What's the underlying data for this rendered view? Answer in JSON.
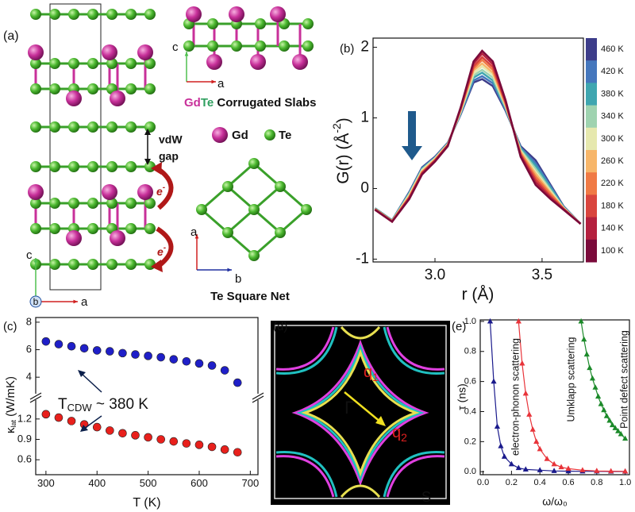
{
  "panel_a": {
    "panel": "(a)",
    "slab_label": [
      "Gd",
      "Te",
      " Corrugated Slabs"
    ],
    "legend": [
      "Gd",
      "Te"
    ],
    "gap": [
      "vdW",
      "gap"
    ],
    "electrons": [
      {
        "symbol": "e",
        "sup": "-"
      },
      {
        "symbol": "e",
        "sup": "-"
      }
    ],
    "slab_axes": [
      "c",
      "a"
    ],
    "net_axes": [
      "a",
      "b"
    ],
    "cell_axes": [
      "c",
      "b",
      "a"
    ],
    "net_label": "Te Square Net"
  },
  "panel_d": {
    "panel": "(d)",
    "gamma": "Γ",
    "q1": {
      "symbol": "q",
      "sub": "1"
    },
    "q2": {
      "symbol": "q",
      "sub": "2"
    },
    "corner": "S"
  },
  "chart_data": [
    {
      "type": "line",
      "panel": "(b)",
      "xlabel": "r (Å)",
      "ylabel": {
        "text": "G(r) (Å",
        "sup": "-2",
        "close": ")"
      },
      "x": [
        2.72,
        2.8,
        2.88,
        2.94,
        3.0,
        3.06,
        3.12,
        3.18,
        3.22,
        3.27,
        3.33,
        3.4,
        3.47,
        3.54,
        3.6,
        3.68
      ],
      "xlim": [
        2.711,
        3.693
      ],
      "xticks": [
        {
          "value": 3,
          "label": "3.0"
        },
        3.5
      ],
      "ylim": [
        -1.04,
        2.13
      ],
      "yticks": [
        -1,
        0,
        1,
        2
      ],
      "series": [
        {
          "name": "460 K",
          "color": "#3d3d8a",
          "values": [
            -0.28,
            -0.45,
            -0.05,
            0.3,
            0.45,
            0.65,
            1.05,
            1.5,
            1.55,
            1.45,
            1.1,
            0.6,
            0.4,
            0.05,
            -0.25,
            -0.5
          ]
        },
        {
          "name": "420 K",
          "color": "#4577bd",
          "values": [
            -0.28,
            -0.45,
            -0.06,
            0.29,
            0.44,
            0.64,
            1.06,
            1.53,
            1.59,
            1.49,
            1.12,
            0.58,
            0.36,
            0.03,
            -0.26,
            -0.5
          ]
        },
        {
          "name": "380 K",
          "color": "#3fa6b0",
          "values": [
            -0.28,
            -0.45,
            -0.07,
            0.28,
            0.43,
            0.64,
            1.07,
            1.57,
            1.64,
            1.53,
            1.13,
            0.57,
            0.32,
            0.01,
            -0.26,
            -0.5
          ]
        },
        {
          "name": "340 K",
          "color": "#9fd3b0",
          "values": [
            -0.29,
            -0.46,
            -0.08,
            0.27,
            0.43,
            0.63,
            1.08,
            1.6,
            1.68,
            1.57,
            1.15,
            0.55,
            0.28,
            -0.02,
            -0.27,
            -0.5
          ]
        },
        {
          "name": "300 K",
          "color": "#e6e8ae",
          "values": [
            -0.29,
            -0.46,
            -0.09,
            0.26,
            0.42,
            0.63,
            1.09,
            1.63,
            1.73,
            1.61,
            1.17,
            0.53,
            0.24,
            -0.04,
            -0.27,
            -0.5
          ]
        },
        {
          "name": "260 K",
          "color": "#f7b66a",
          "values": [
            -0.29,
            -0.46,
            -0.11,
            0.24,
            0.41,
            0.62,
            1.11,
            1.67,
            1.77,
            1.64,
            1.18,
            0.52,
            0.21,
            -0.06,
            -0.28,
            -0.5
          ]
        },
        {
          "name": "220 K",
          "color": "#f07a45",
          "values": [
            -0.29,
            -0.46,
            -0.12,
            0.23,
            0.4,
            0.62,
            1.12,
            1.7,
            1.82,
            1.68,
            1.2,
            0.5,
            0.17,
            -0.08,
            -0.28,
            -0.5
          ]
        },
        {
          "name": "180 K",
          "color": "#d9453e",
          "values": [
            -0.3,
            -0.47,
            -0.13,
            0.22,
            0.4,
            0.61,
            1.13,
            1.73,
            1.86,
            1.72,
            1.22,
            0.48,
            0.13,
            -0.11,
            -0.29,
            -0.5
          ]
        },
        {
          "name": "140 K",
          "color": "#b4203e",
          "values": [
            -0.3,
            -0.47,
            -0.14,
            0.21,
            0.39,
            0.61,
            1.14,
            1.77,
            1.91,
            1.76,
            1.23,
            0.47,
            0.09,
            -0.13,
            -0.29,
            -0.5
          ]
        },
        {
          "name": "100 K",
          "color": "#7a0a3a",
          "values": [
            -0.3,
            -0.47,
            -0.15,
            0.2,
            0.38,
            0.6,
            1.15,
            1.8,
            1.95,
            1.8,
            1.25,
            0.45,
            0.05,
            -0.15,
            -0.3,
            -0.5
          ]
        }
      ]
    },
    {
      "type": "scatter",
      "panel": "(c)",
      "marker": "circle",
      "ylabel": {
        "symbol": "κ",
        "sub": "lat",
        "unit": " (W/mK)"
      },
      "annotation": {
        "symbol": "T",
        "sub": "CDW",
        "text": " ~ 380 K"
      },
      "x": [
        300,
        325,
        350,
        375,
        400,
        425,
        450,
        475,
        500,
        525,
        550,
        575,
        600,
        625,
        650,
        675
      ],
      "xlim": [
        280,
        715
      ],
      "ylim": [
        2.74,
        8.34
      ],
      "yticks": [
        4,
        6,
        8
      ],
      "series": [
        {
          "color": "#1f1fc8",
          "values": [
            6.6,
            6.4,
            6.25,
            6.1,
            5.95,
            5.88,
            5.75,
            5.65,
            5.55,
            5.45,
            5.3,
            5.15,
            5.0,
            4.85,
            4.5,
            3.6
          ]
        }
      ]
    },
    {
      "type": "scatter",
      "marker": "circle",
      "xlabel": "T (K)",
      "x": [
        300,
        325,
        350,
        375,
        400,
        425,
        450,
        475,
        500,
        525,
        550,
        575,
        600,
        625,
        650,
        675
      ],
      "xlim": [
        280,
        715
      ],
      "xticks": [
        300,
        400,
        500,
        600,
        700
      ],
      "ylim": [
        0.38,
        1.49
      ],
      "yticks": [
        0.6,
        0.9,
        1.2
      ],
      "series": [
        {
          "color": "#e8201c",
          "values": [
            1.27,
            1.22,
            1.17,
            1.12,
            1.08,
            1.03,
            0.99,
            0.96,
            0.93,
            0.9,
            0.87,
            0.84,
            0.82,
            0.79,
            0.75,
            0.71
          ]
        }
      ]
    },
    {
      "type": "line",
      "panel": "(e)",
      "marker": "triangle",
      "xlabel": "ω/ω₀",
      "ylabel": "τ (ns)",
      "xlim": [
        -0.02,
        1.03
      ],
      "xticks": [
        {
          "value": 0,
          "label": "0.0"
        },
        0.2,
        0.4,
        0.6,
        0.8,
        {
          "value": 1,
          "label": "1.0"
        }
      ],
      "ylim": [
        -0.02,
        1.01
      ],
      "yticks": [
        {
          "value": 0,
          "label": "0.0"
        },
        0.2,
        0.4,
        0.6,
        0.8,
        {
          "value": 1,
          "label": "1.0"
        }
      ],
      "series": [
        {
          "name": "electron-phonon scattering",
          "color": "#1a1a8c",
          "x": [
            0.05,
            0.075,
            0.1,
            0.125,
            0.15,
            0.2,
            0.25,
            0.3,
            0.4,
            0.5,
            0.6,
            0.7,
            0.8,
            0.9,
            1.0
          ],
          "values": [
            1.0,
            0.6,
            0.3,
            0.17,
            0.1,
            0.05,
            0.025,
            0.015,
            0.01,
            0.005,
            0.003,
            0.002,
            0.002,
            0.001,
            0.001
          ]
        },
        {
          "name": "Umklapp scattering",
          "color": "#e8343a",
          "x": [
            0.25,
            0.275,
            0.3,
            0.325,
            0.35,
            0.375,
            0.4,
            0.45,
            0.5,
            0.55,
            0.6,
            0.7,
            0.8,
            0.9,
            1.0
          ],
          "values": [
            1.0,
            0.72,
            0.52,
            0.38,
            0.28,
            0.2,
            0.15,
            0.085,
            0.05,
            0.03,
            0.02,
            0.01,
            0.005,
            0.003,
            0.002
          ]
        },
        {
          "name": "Point defect scattering",
          "color": "#1c8a2a",
          "x": [
            0.69,
            0.71,
            0.73,
            0.75,
            0.77,
            0.79,
            0.81,
            0.83,
            0.85,
            0.87,
            0.89,
            0.91,
            0.93,
            0.95,
            0.97,
            1.0
          ],
          "values": [
            1.0,
            0.88,
            0.78,
            0.69,
            0.62,
            0.56,
            0.5,
            0.45,
            0.41,
            0.37,
            0.34,
            0.31,
            0.29,
            0.27,
            0.25,
            0.22
          ]
        }
      ]
    }
  ]
}
